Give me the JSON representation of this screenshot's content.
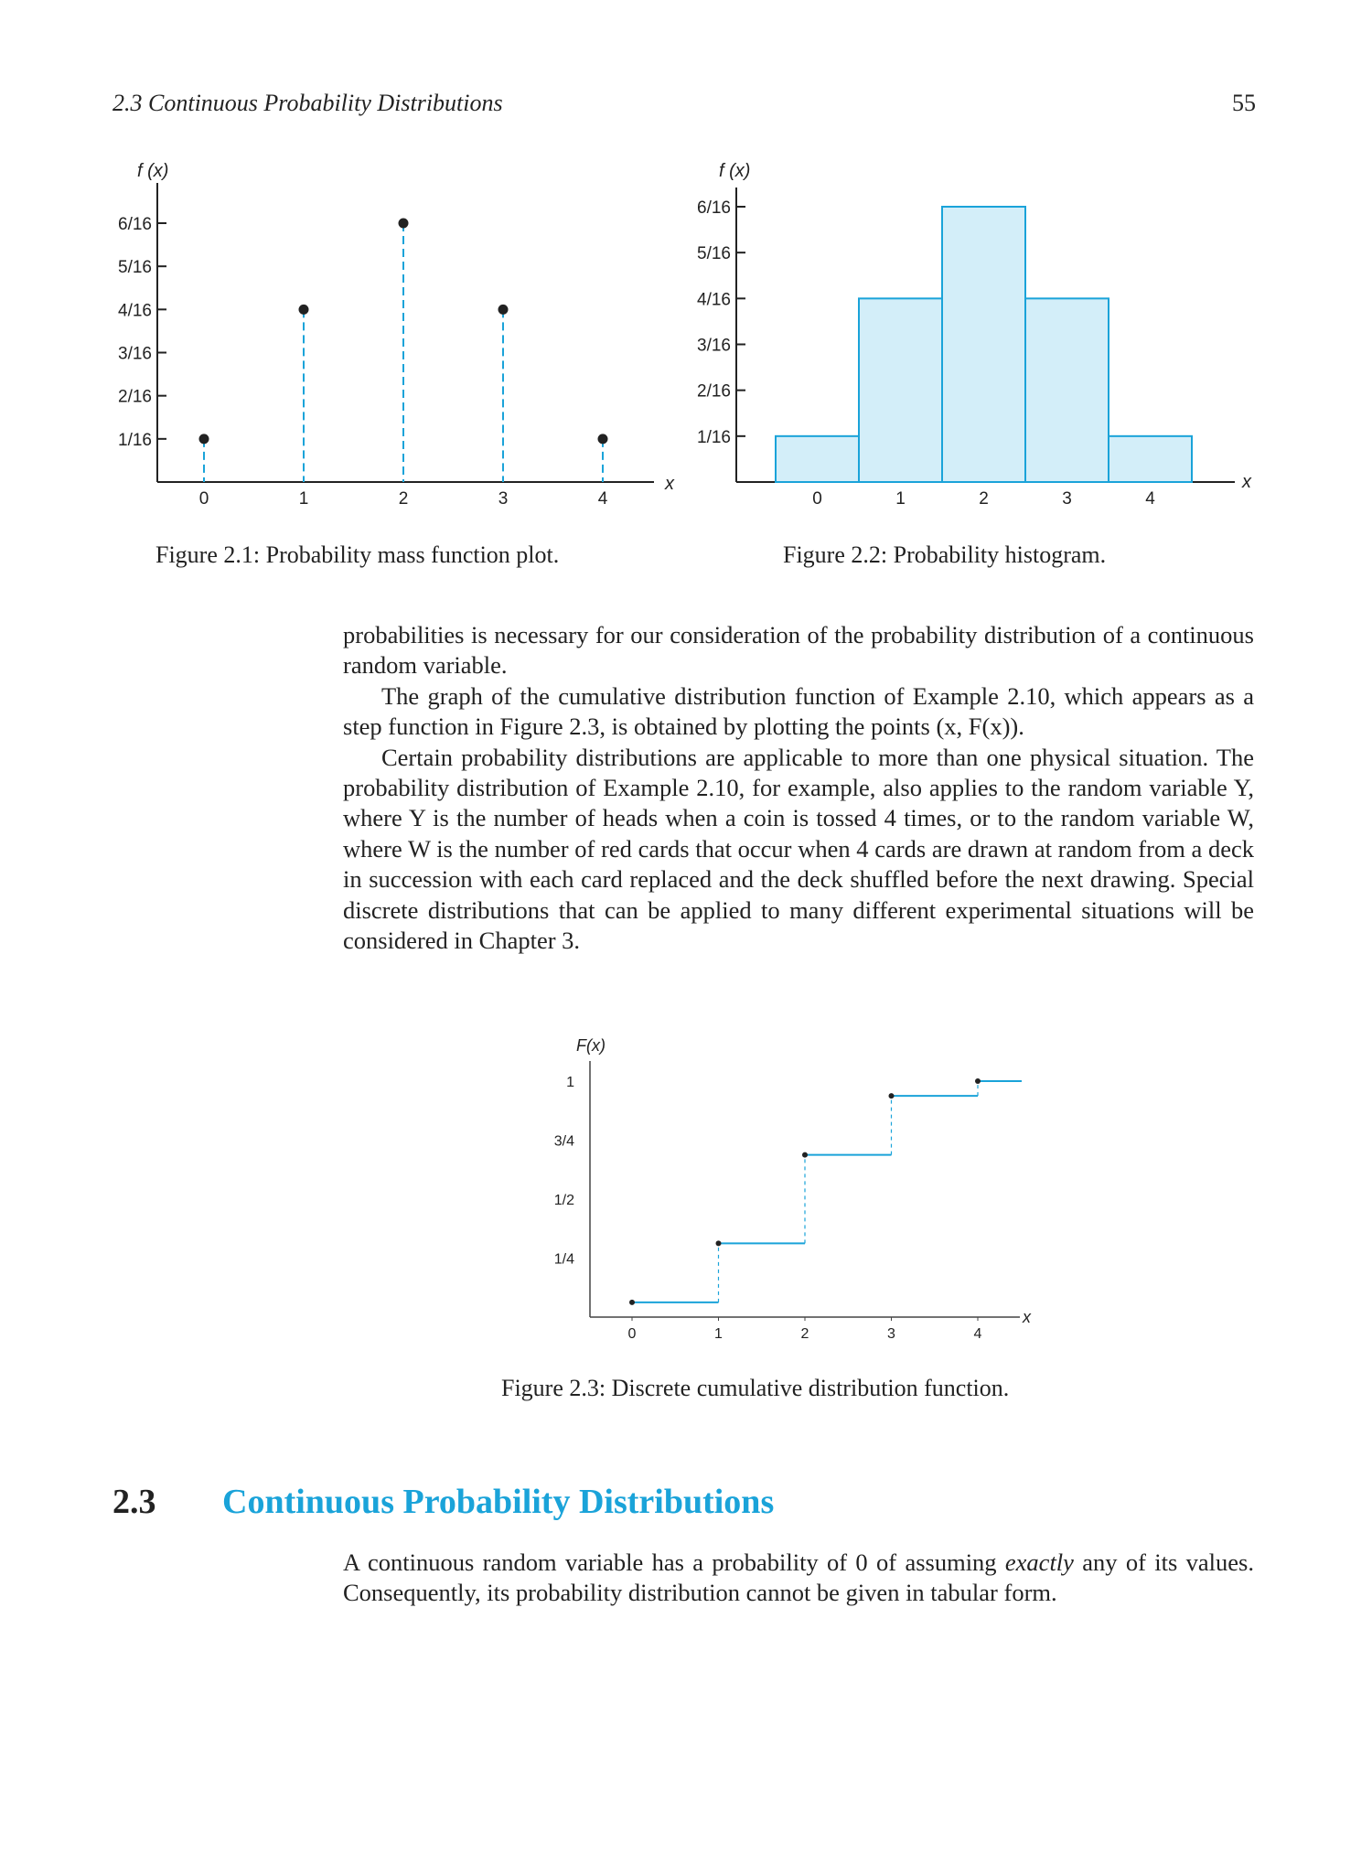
{
  "header": {
    "running_head": "2.3  Continuous Probability Distributions",
    "page_number": "55"
  },
  "figure1": {
    "caption": "Figure 2.1:  Probability mass function plot.",
    "ylabel": "f (x)",
    "xlabel": "x",
    "yticks": [
      "1/16",
      "2/16",
      "3/16",
      "4/16",
      "5/16",
      "6/16"
    ],
    "xticks": [
      "0",
      "1",
      "2",
      "3",
      "4"
    ],
    "colors": {
      "stem": "#1aa3d9",
      "point": "#222222",
      "axis": "#222222"
    }
  },
  "figure2": {
    "caption": "Figure 2.2:  Probability histogram.",
    "ylabel": "f (x)",
    "xlabel": "x",
    "yticks": [
      "1/16",
      "2/16",
      "3/16",
      "4/16",
      "5/16",
      "6/16"
    ],
    "xticks": [
      "0",
      "1",
      "2",
      "3",
      "4"
    ],
    "colors": {
      "fill": "#d3eef9",
      "edge": "#1aa3d9"
    }
  },
  "figure3": {
    "caption": "Figure 2.3:  Discrete cumulative distribution function.",
    "ylabel": "F(x)",
    "xlabel": "x",
    "yticks": [
      "1/4",
      "1/2",
      "3/4",
      "1"
    ],
    "xticks": [
      "0",
      "1",
      "2",
      "3",
      "4"
    ],
    "colors": {
      "step": "#1aa3d9"
    }
  },
  "chart_data": [
    {
      "type": "scatter",
      "x": [
        0,
        1,
        2,
        3,
        4
      ],
      "values": [
        0.0625,
        0.25,
        0.375,
        0.25,
        0.0625
      ],
      "ylim": [
        0,
        0.375
      ]
    },
    {
      "type": "bar",
      "categories": [
        "0",
        "1",
        "2",
        "3",
        "4"
      ],
      "values": [
        0.0625,
        0.25,
        0.375,
        0.25,
        0.0625
      ],
      "ylim": [
        0,
        0.375
      ]
    },
    {
      "type": "line",
      "x": [
        0,
        1,
        2,
        3,
        4
      ],
      "values": [
        0.0625,
        0.3125,
        0.6875,
        0.9375,
        1
      ],
      "ylim": [
        0,
        1
      ]
    }
  ],
  "body": {
    "p1": "probabilities is necessary for our consideration of the probability distribution of a continuous random variable.",
    "p2": "The graph of the cumulative distribution function of Example 2.10, which appears as a step function in Figure 2.3, is obtained by plotting the points (x, F(x)).",
    "p3": "Certain probability distributions are applicable to more than one physical situation. The probability distribution of Example 2.10, for example, also applies to the random variable Y, where Y is the number of heads when a coin is tossed 4 times, or to the random variable W, where W is the number of red cards that occur when 4 cards are drawn at random from a deck in succession with each card replaced and the deck shuffled before the next drawing. Special discrete distributions that can be applied to many different experimental situations will be considered in Chapter 3."
  },
  "section": {
    "number": "2.3",
    "title": "Continuous Probability Distributions",
    "text_before": "A continuous random variable has a probability of 0 of assuming ",
    "text_emph": "exactly",
    "text_after": " any of its values. Consequently, its probability distribution cannot be given in tabular form."
  }
}
